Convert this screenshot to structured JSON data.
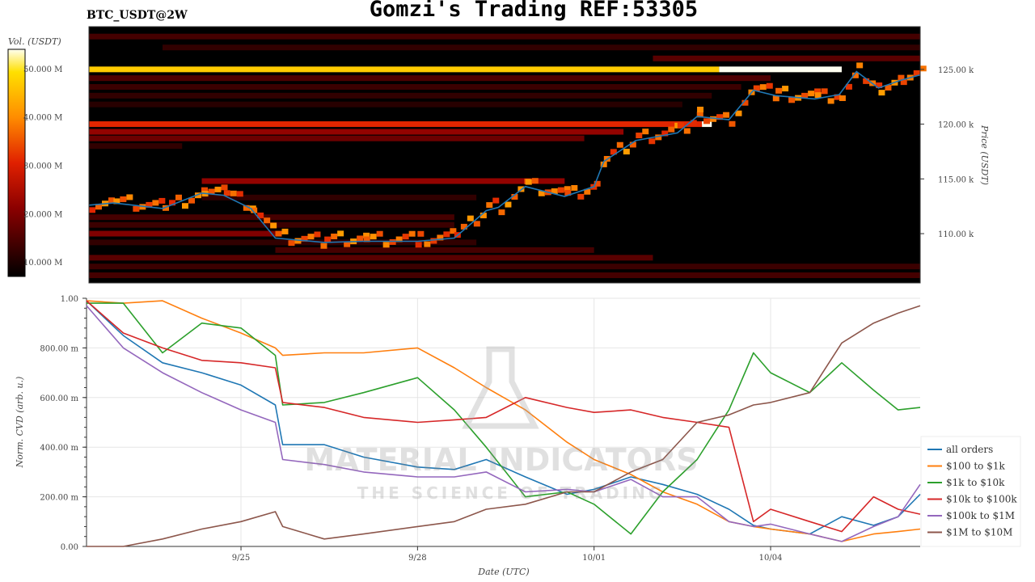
{
  "header": {
    "title": "Gomzi's Trading REF:53305",
    "symbol": "BTC_USDT@2W"
  },
  "watermark": {
    "line1": "MATERIAL INDICATORS",
    "line2": "THE SCIENCE OF TRADING"
  },
  "chart_data": [
    {
      "type": "heatmap",
      "title": "BTC_USDT@2W",
      "ylabel": "Price (USDT)",
      "colorbar_label": "Vol. (USDT)",
      "colorbar_ticks": [
        "10.000 M",
        "20.000 M",
        "30.000 M",
        "40.000 M",
        "50.000 M"
      ],
      "colorbar_range_M": [
        7,
        54
      ],
      "colormap": "hot",
      "y_ticks": [
        "110.00 k",
        "115.00 k",
        "120.00 k",
        "125.00 k"
      ],
      "ylim_k": [
        105.5,
        128.9
      ],
      "xlim": [
        "09/22 09:00",
        "10/06 13:00"
      ],
      "bands": [
        {
          "price_k": 125.0,
          "volume_M": 47,
          "from": "09/22 09:00",
          "to": "10/03 03:00"
        },
        {
          "price_k": 125.0,
          "volume_M": 54,
          "from": "10/03 03:00",
          "to": "10/05 05:00"
        },
        {
          "price_k": 120.0,
          "volume_M": 31,
          "from": "09/22 09:00",
          "to": "10/02 20:00"
        },
        {
          "price_k": 120.0,
          "volume_M": 54,
          "from": "10/02 20:00",
          "to": "10/03 00:00"
        },
        {
          "price_k": 128.0,
          "volume_M": 14,
          "from": "09/22 09:00",
          "to": "10/06 13:00"
        },
        {
          "price_k": 127.0,
          "volume_M": 12,
          "from": "09/23 16:00",
          "to": "10/06 13:00"
        },
        {
          "price_k": 126.0,
          "volume_M": 16,
          "from": "10/02 00:00",
          "to": "10/06 13:00"
        },
        {
          "price_k": 124.2,
          "volume_M": 15,
          "from": "09/22 09:00",
          "to": "10/04 00:00"
        },
        {
          "price_k": 123.4,
          "volume_M": 13,
          "from": "09/22 09:00",
          "to": "10/03 12:00"
        },
        {
          "price_k": 122.6,
          "volume_M": 12,
          "from": "09/22 09:00",
          "to": "10/03 00:00"
        },
        {
          "price_k": 121.8,
          "volume_M": 11,
          "from": "09/22 09:00",
          "to": "10/02 12:00"
        },
        {
          "price_k": 119.3,
          "volume_M": 22,
          "from": "09/22 09:00",
          "to": "10/01 12:00"
        },
        {
          "price_k": 118.7,
          "volume_M": 18,
          "from": "09/22 09:00",
          "to": "09/30 20:00"
        },
        {
          "price_k": 118.0,
          "volume_M": 12,
          "from": "09/22 09:00",
          "to": "09/24 00:00"
        },
        {
          "price_k": 114.8,
          "volume_M": 22,
          "from": "09/24 08:00",
          "to": "09/30 12:00"
        },
        {
          "price_k": 113.3,
          "volume_M": 12,
          "from": "09/24 08:00",
          "to": "09/29 00:00"
        },
        {
          "price_k": 111.5,
          "volume_M": 14,
          "from": "09/22 09:00",
          "to": "09/28 15:00"
        },
        {
          "price_k": 110.8,
          "volume_M": 13,
          "from": "09/22 09:00",
          "to": "09/28 15:00"
        },
        {
          "price_k": 110.0,
          "volume_M": 20,
          "from": "09/22 09:00",
          "to": "09/25 14:00"
        },
        {
          "price_k": 109.2,
          "volume_M": 12,
          "from": "09/22 09:00",
          "to": "09/29 00:00"
        },
        {
          "price_k": 108.5,
          "volume_M": 14,
          "from": "09/25 14:00",
          "to": "10/01 00:00"
        },
        {
          "price_k": 107.8,
          "volume_M": 16,
          "from": "09/22 09:00",
          "to": "10/02 00:00"
        },
        {
          "price_k": 107.0,
          "volume_M": 13,
          "from": "09/22 09:00",
          "to": "10/06 13:00"
        },
        {
          "price_k": 106.2,
          "volume_M": 14,
          "from": "09/22 09:00",
          "to": "10/06 13:00"
        }
      ],
      "near_price_volume_M": 36,
      "price": {
        "color": "#1f77b4",
        "x": [
          "09/22 09:00",
          "09/22 20:00",
          "09/23 16:00",
          "09/24 08:00",
          "09/24 17:00",
          "09/25 04:00",
          "09/25 14:00",
          "09/26 10:00",
          "09/27 02:00",
          "09/28 00:00",
          "09/28 15:00",
          "09/29 04:00",
          "09/29 09:00",
          "09/29 20:00",
          "09/30 12:00",
          "10/01 00:00",
          "10/01 04:00",
          "10/01 17:00",
          "10/02 10:00",
          "10/02 18:00",
          "10/03 07:00",
          "10/03 17:00",
          "10/04 02:00",
          "10/04 18:00",
          "10/05 04:00",
          "10/05 11:00",
          "10/05 20:00",
          "10/06 05:00",
          "10/06 13:00"
        ],
        "y_k": [
          112.6,
          112.8,
          112.3,
          113.7,
          113.5,
          112.3,
          109.6,
          109.2,
          109.3,
          109.3,
          109.6,
          112.1,
          112.4,
          114.3,
          113.4,
          114.3,
          116.6,
          118.5,
          119.2,
          120.7,
          120.4,
          123.1,
          122.6,
          122.3,
          122.7,
          124.8,
          123.3,
          124.0,
          124.5
        ]
      }
    },
    {
      "type": "line",
      "xlabel": "Date (UTC)",
      "ylabel": "Norm. CVD (arb. u.)",
      "x_ticks": [
        "9/25",
        "9/28",
        "10/01",
        "10/04"
      ],
      "y_ticks": [
        "0.00",
        "200.00 m",
        "400.00 m",
        "600.00 m",
        "800.00 m",
        "1.00"
      ],
      "ylim": [
        0,
        1
      ],
      "xlim": [
        "09/22 09:00",
        "10/06 13:00"
      ],
      "grid": true,
      "legend_position": "right",
      "x": [
        "09/22 09:00",
        "09/23 00:00",
        "09/23 16:00",
        "09/24 08:00",
        "09/25 00:00",
        "09/25 14:00",
        "09/25 17:00",
        "09/26 10:00",
        "09/27 02:00",
        "09/28 00:00",
        "09/28 15:00",
        "09/29 04:00",
        "09/29 20:00",
        "09/30 13:00",
        "10/01 00:00",
        "10/01 15:00",
        "10/02 04:00",
        "10/02 18:00",
        "10/03 07:00",
        "10/03 17:00",
        "10/04 00:00",
        "10/04 16:00",
        "10/05 05:00",
        "10/05 18:00",
        "10/06 04:00",
        "10/06 13:00"
      ],
      "series": [
        {
          "name": "all orders",
          "color": "#1f77b4",
          "values": [
            0.99,
            0.85,
            0.74,
            0.7,
            0.65,
            0.57,
            0.41,
            0.41,
            0.36,
            0.32,
            0.31,
            0.35,
            0.28,
            0.21,
            0.23,
            0.28,
            0.25,
            0.21,
            0.15,
            0.085,
            0.07,
            0.05,
            0.12,
            0.085,
            0.12,
            0.21
          ]
        },
        {
          "name": "$100 to $1k",
          "color": "#ff7f0e",
          "values": [
            0.99,
            0.98,
            0.99,
            0.92,
            0.86,
            0.8,
            0.77,
            0.78,
            0.78,
            0.8,
            0.72,
            0.64,
            0.55,
            0.42,
            0.35,
            0.29,
            0.22,
            0.17,
            0.1,
            0.08,
            0.07,
            0.05,
            0.02,
            0.05,
            0.06,
            0.07
          ]
        },
        {
          "name": "$1k to $10k",
          "color": "#2ca02c",
          "values": [
            0.98,
            0.98,
            0.78,
            0.9,
            0.88,
            0.77,
            0.57,
            0.58,
            0.62,
            0.68,
            0.55,
            0.4,
            0.2,
            0.22,
            0.17,
            0.05,
            0.22,
            0.35,
            0.55,
            0.78,
            0.7,
            0.62,
            0.74,
            0.63,
            0.55,
            0.56
          ]
        },
        {
          "name": "$10k to $100k",
          "color": "#d62728",
          "values": [
            0.99,
            0.86,
            0.8,
            0.75,
            0.74,
            0.72,
            0.58,
            0.56,
            0.52,
            0.5,
            0.51,
            0.52,
            0.6,
            0.56,
            0.54,
            0.55,
            0.52,
            0.5,
            0.48,
            0.1,
            0.15,
            0.1,
            0.06,
            0.2,
            0.15,
            0.13
          ]
        },
        {
          "name": "$100k to $1M",
          "color": "#9467bd",
          "values": [
            0.97,
            0.8,
            0.7,
            0.62,
            0.55,
            0.5,
            0.35,
            0.33,
            0.3,
            0.28,
            0.28,
            0.3,
            0.22,
            0.23,
            0.22,
            0.27,
            0.2,
            0.2,
            0.1,
            0.08,
            0.09,
            0.05,
            0.02,
            0.08,
            0.12,
            0.25
          ]
        },
        {
          "name": "$1M to $10M",
          "color": "#8c564b",
          "values": [
            0.0,
            0.0,
            0.03,
            0.07,
            0.1,
            0.14,
            0.08,
            0.03,
            0.05,
            0.08,
            0.1,
            0.15,
            0.17,
            0.22,
            0.22,
            0.3,
            0.35,
            0.5,
            0.53,
            0.57,
            0.58,
            0.62,
            0.82,
            0.9,
            0.94,
            0.97
          ]
        }
      ]
    }
  ]
}
